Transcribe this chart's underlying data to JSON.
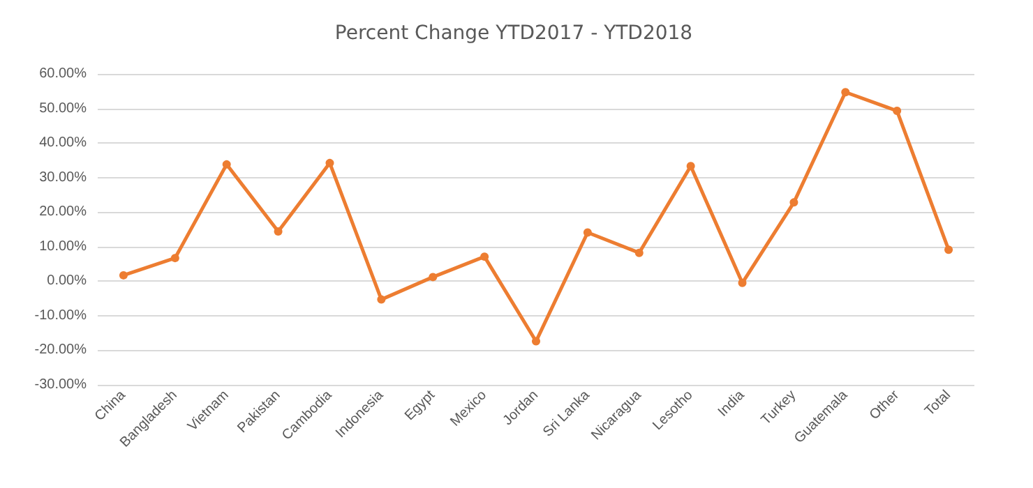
{
  "chart_data": {
    "type": "line",
    "title": "Percent Change YTD2017 - YTD2018",
    "categories": [
      "China",
      "Bangladesh",
      "Vietnam",
      "Pakistan",
      "Cambodia",
      "Indonesia",
      "Egypt",
      "Mexico",
      "Jordan",
      "Sri Lanka",
      "Nicaragua",
      "Lesotho",
      "India",
      "Turkey",
      "Guatemala",
      "Other",
      "Total"
    ],
    "series": [
      {
        "color": "#ed7d31",
        "values": [
          1.7,
          6.7,
          33.8,
          14.4,
          34.2,
          -5.3,
          1.2,
          7.1,
          -17.4,
          14.1,
          8.2,
          33.3,
          -0.5,
          22.8,
          54.7,
          49.3,
          9.1
        ]
      }
    ],
    "ylim": [
      -30,
      60
    ],
    "yticks": [
      {
        "value": -30,
        "label": "-30.00%"
      },
      {
        "value": -20,
        "label": "-20.00%"
      },
      {
        "value": -10,
        "label": "-10.00%"
      },
      {
        "value": 0,
        "label": "0.00%"
      },
      {
        "value": 10,
        "label": "10.00%"
      },
      {
        "value": 20,
        "label": "20.00%"
      },
      {
        "value": 30,
        "label": "30.00%"
      },
      {
        "value": 40,
        "label": "40.00%"
      },
      {
        "value": 50,
        "label": "50.00%"
      },
      {
        "value": 60,
        "label": "60.00%"
      }
    ],
    "grid": "y",
    "marker": "circle",
    "line_style": "solid"
  }
}
